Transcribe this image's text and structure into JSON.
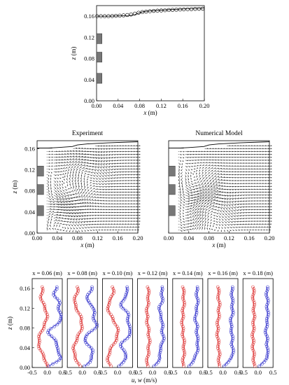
{
  "chart_data": [
    {
      "id": "surface",
      "type": "scatter",
      "xlabel_var": "x",
      "xlabel_unit": " (m)",
      "ylabel_var": "z",
      "ylabel_unit": " (m)",
      "xlim": [
        0,
        0.2
      ],
      "ylim": [
        0,
        0.18
      ],
      "xticks": [
        "0.00",
        "0.04",
        "0.08",
        "0.12",
        "0.16",
        "0.20"
      ],
      "yticks": [
        "0.00",
        "0.04",
        "0.08",
        "0.12",
        "0.16"
      ],
      "obstacles": [
        [
          0.03,
          0.045
        ],
        [
          0.07,
          0.085
        ],
        [
          0.105,
          0.12
        ]
      ],
      "series": [
        {
          "style": "line",
          "x": [
            0,
            0.02,
            0.04,
            0.06,
            0.07,
            0.075,
            0.08,
            0.085,
            0.09,
            0.1,
            0.12,
            0.14,
            0.16,
            0.18,
            0.2
          ],
          "y": [
            0.16,
            0.16,
            0.1605,
            0.161,
            0.1625,
            0.1645,
            0.1665,
            0.168,
            0.169,
            0.17,
            0.1715,
            0.1725,
            0.1735,
            0.1745,
            0.175
          ]
        },
        {
          "style": "markers",
          "x": [
            0.001,
            0.008,
            0.015,
            0.022,
            0.029,
            0.036,
            0.043,
            0.05,
            0.057,
            0.064,
            0.071,
            0.078,
            0.085,
            0.092,
            0.099,
            0.106,
            0.113,
            0.12,
            0.127,
            0.134,
            0.141,
            0.148,
            0.155,
            0.162,
            0.169,
            0.176,
            0.183,
            0.19,
            0.197
          ],
          "y": [
            0.16,
            0.16,
            0.16,
            0.16,
            0.1603,
            0.1607,
            0.161,
            0.1615,
            0.1622,
            0.1632,
            0.1648,
            0.1665,
            0.1678,
            0.1687,
            0.1694,
            0.17,
            0.1704,
            0.1708,
            0.1712,
            0.1716,
            0.172,
            0.1723,
            0.1726,
            0.1729,
            0.1732,
            0.1735,
            0.1738,
            0.174,
            0.1743
          ]
        }
      ]
    },
    {
      "id": "experiment",
      "type": "quiver",
      "title": "Experiment",
      "xlabel_var": "x",
      "xlabel_unit": " (m)",
      "ylabel_var": "z",
      "ylabel_unit": " (m)",
      "xlim": [
        0,
        0.2
      ],
      "ylim": [
        0,
        0.175
      ],
      "xticks": [
        "0.00",
        "0.04",
        "0.08",
        "0.12",
        "0.16",
        "0.20"
      ],
      "yticks": [
        "0.00",
        "0.04",
        "0.08",
        "0.12",
        "0.16"
      ],
      "obstacles": [
        [
          0.03,
          0.045
        ],
        [
          0.07,
          0.085
        ],
        [
          0.105,
          0.12
        ]
      ],
      "surface": {
        "x": [
          0,
          0.02,
          0.04,
          0.07,
          0.08,
          0.1,
          0.14,
          0.2
        ],
        "y": [
          0.161,
          0.161,
          0.162,
          0.164,
          0.167,
          0.169,
          0.171,
          0.173
        ]
      },
      "vortices": [
        [
          0.06,
          0.07,
          1.0
        ],
        [
          0.095,
          0.12,
          -0.6
        ],
        [
          0.05,
          0.035,
          -0.7
        ]
      ]
    },
    {
      "id": "numerical",
      "type": "quiver",
      "title": "Numerical Model",
      "xlabel_var": "x",
      "xlabel_unit": " (m)",
      "xlim": [
        0,
        0.2
      ],
      "ylim": [
        0,
        0.175
      ],
      "xticks": [
        "0.00",
        "0.04",
        "0.08",
        "0.12",
        "0.16",
        "0.20"
      ],
      "obstacles": [
        [
          0.03,
          0.045
        ],
        [
          0.07,
          0.085
        ],
        [
          0.105,
          0.12
        ]
      ],
      "surface": {
        "x": [
          0,
          0.02,
          0.04,
          0.07,
          0.08,
          0.1,
          0.14,
          0.2
        ],
        "y": [
          0.161,
          0.161,
          0.162,
          0.164,
          0.167,
          0.169,
          0.171,
          0.173
        ]
      },
      "vortices": [
        [
          0.05,
          0.085,
          1.0
        ],
        [
          0.08,
          0.05,
          -0.8
        ],
        [
          0.035,
          0.025,
          0.6
        ]
      ]
    },
    {
      "id": "profiles",
      "type": "line",
      "ylabel_var": "z",
      "ylabel_unit": " (m)",
      "xlabel": "u, w (m/s)",
      "xlim": [
        -0.5,
        0.5
      ],
      "ylim": [
        0,
        0.18
      ],
      "xticks": [
        "-0.5",
        "0.0",
        "0.5"
      ],
      "yticks": [
        "0.00",
        "0.04",
        "0.08",
        "0.12",
        "0.16"
      ],
      "panels": [
        {
          "label": "x = 0.06 (m)",
          "u_amp": 0.22,
          "w_amp": 0.15
        },
        {
          "label": "x = 0.08 (m)",
          "u_amp": 0.2,
          "w_amp": 0.15
        },
        {
          "label": "x = 0.10 (m)",
          "u_amp": 0.16,
          "w_amp": 0.18
        },
        {
          "label": "x = 0.12 (m)",
          "u_amp": 0.06,
          "w_amp": 0.04
        },
        {
          "label": "x = 0.14 (m)",
          "u_amp": 0.04,
          "w_amp": 0.03
        },
        {
          "label": "x = 0.16 (m)",
          "u_amp": 0.03,
          "w_amp": 0.03
        },
        {
          "label": "x = 0.18 (m)",
          "u_amp": 0.03,
          "w_amp": 0.02
        }
      ],
      "u_mean": 0.3,
      "w_mean": -0.15,
      "colors": {
        "u": "#3333cc",
        "w": "#dd3333",
        "obstacle": "#777777"
      }
    }
  ]
}
